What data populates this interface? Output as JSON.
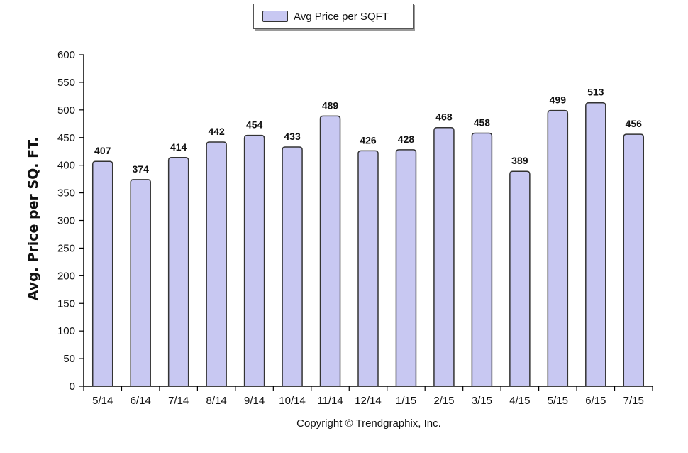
{
  "chart_data": {
    "type": "bar",
    "categories": [
      "5/14",
      "6/14",
      "7/14",
      "8/14",
      "9/14",
      "10/14",
      "11/14",
      "12/14",
      "1/15",
      "2/15",
      "3/15",
      "4/15",
      "5/15",
      "6/15",
      "7/15"
    ],
    "series": [
      {
        "name": "Avg Price per SQFT",
        "values": [
          407,
          374,
          414,
          442,
          454,
          433,
          489,
          426,
          428,
          468,
          458,
          389,
          499,
          513,
          456
        ]
      }
    ],
    "ylabel": "Avg. Price per SQ. FT.",
    "xlabel": "",
    "ylim": [
      0,
      600
    ],
    "yticks": [
      0,
      50,
      100,
      150,
      200,
      250,
      300,
      350,
      400,
      450,
      500,
      550,
      600
    ],
    "data_labels": true,
    "grid": false,
    "legend_position": "top-center",
    "bar_color": "#c8c8f2",
    "bar_stroke": "#333333"
  },
  "legend": {
    "label": "Avg Price per SQFT"
  },
  "footnote": "Copyright © Trendgraphix, Inc."
}
